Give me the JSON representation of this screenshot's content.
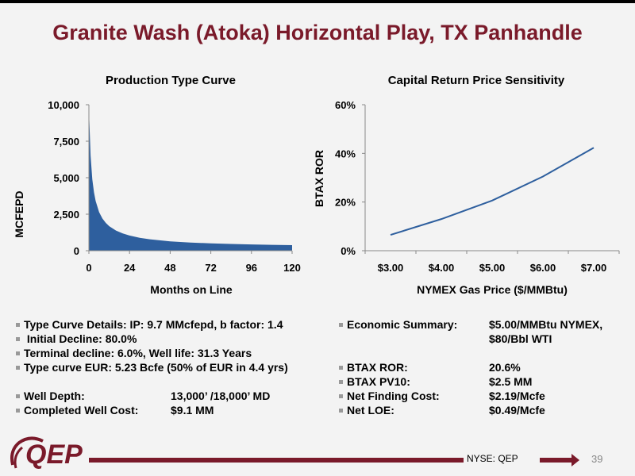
{
  "slide": {
    "title": "Granite Wash (Atoka) Horizontal Play, TX Panhandle",
    "page_number": "39",
    "ticker": "NYSE: QEP",
    "logo_text": "QEP",
    "accent_color": "#7a1a2a"
  },
  "chart_data": [
    {
      "type": "area",
      "title": "Production Type Curve",
      "xlabel": "Months on Line",
      "ylabel": "MCFEPD",
      "xlim": [
        0,
        120
      ],
      "ylim": [
        0,
        10000
      ],
      "xticks": [
        "0",
        "24",
        "48",
        "72",
        "96",
        "120"
      ],
      "yticks": [
        "0",
        "2,500",
        "5,000",
        "7,500",
        "10,000"
      ],
      "fill_color": "#2e5f9e",
      "x": [
        0,
        1,
        2,
        3,
        4,
        6,
        8,
        10,
        12,
        16,
        20,
        24,
        30,
        36,
        48,
        60,
        72,
        84,
        96,
        108,
        120
      ],
      "y": [
        9700,
        6500,
        4900,
        4000,
        3400,
        2650,
        2200,
        1900,
        1680,
        1380,
        1180,
        1040,
        880,
        780,
        640,
        560,
        500,
        460,
        430,
        400,
        380
      ]
    },
    {
      "type": "line",
      "title": "Capital Return Price Sensitivity",
      "xlabel": "NYMEX Gas Price ($/MMBtu)",
      "ylabel": "BTAX ROR",
      "categories": [
        "$3.00",
        "$4.00",
        "$5.00",
        "$6.00",
        "$7.00"
      ],
      "ylim": [
        0,
        60
      ],
      "yticks": [
        "0%",
        "20%",
        "40%",
        "60%"
      ],
      "line_color": "#2e5f9e",
      "x": [
        3.0,
        4.0,
        5.0,
        6.0,
        7.0
      ],
      "y": [
        6.5,
        13.0,
        20.6,
        30.5,
        42.3
      ]
    }
  ],
  "details_left": [
    {
      "text": "Type Curve Details: IP:  9.7 MMcfepd, b factor: 1.4",
      "value": "",
      "bullet": true
    },
    {
      "text": " Initial Decline:  80.0%",
      "value": "",
      "bullet": true
    },
    {
      "text": "Terminal decline:  6.0%, Well life:  31.3 Years",
      "value": "",
      "bullet": true
    },
    {
      "text": "Type curve EUR:  5.23 Bcfe (50% of EUR in 4.4 yrs)",
      "value": "",
      "bullet": true
    },
    {
      "text": "",
      "value": "",
      "bullet": false
    },
    {
      "text": "Well Depth:",
      "value": "13,000’ /18,000’ MD",
      "bullet": true
    },
    {
      "text": "Completed Well Cost:",
      "value": "$9.1 MM",
      "bullet": true
    }
  ],
  "details_right": [
    {
      "text": "Economic Summary:",
      "value": "$5.00/MMBtu NYMEX,",
      "bullet": true
    },
    {
      "text": "",
      "value": "$80/Bbl WTI",
      "bullet": false
    },
    {
      "text": "",
      "value": "",
      "bullet": false
    },
    {
      "text": "BTAX ROR:",
      "value": "20.6%",
      "bullet": true
    },
    {
      "text": "BTAX PV10:",
      "value": "$2.5 MM",
      "bullet": true
    },
    {
      "text": "Net Finding Cost:",
      "value": "$2.19/Mcfe",
      "bullet": true
    },
    {
      "text": "Net LOE:",
      "value": "$0.49/Mcfe",
      "bullet": true
    }
  ]
}
